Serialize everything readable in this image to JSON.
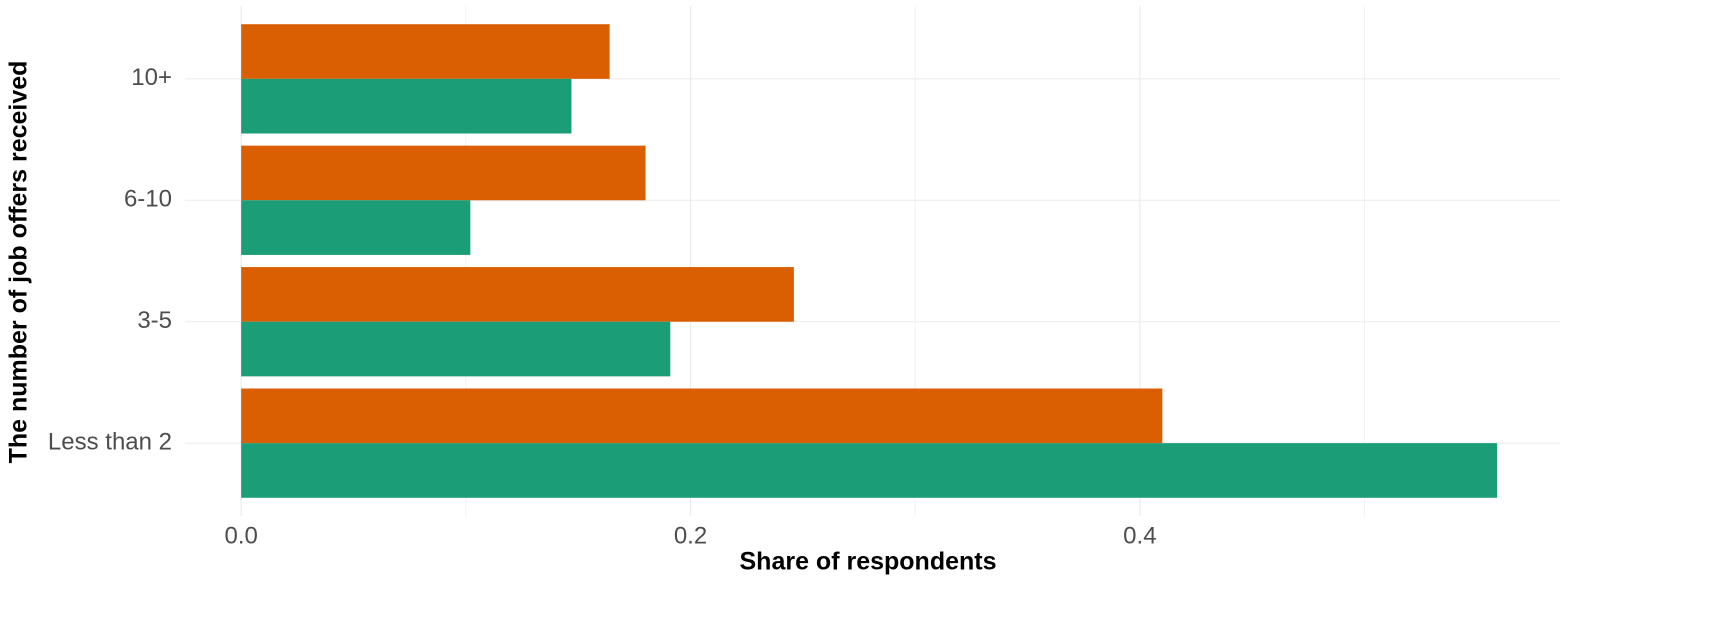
{
  "chart_data": {
    "type": "hbar",
    "x_label": "Share of respondents",
    "y_label": "The number of job offers received",
    "categories": [
      "Less than 2",
      "3-5",
      "6-10",
      "10+"
    ],
    "series": [
      {
        "color": "#d95f02",
        "values": [
          0.41,
          0.246,
          0.18,
          0.164
        ]
      },
      {
        "color": "#1b9e77",
        "values": [
          0.559,
          0.191,
          0.102,
          0.147
        ]
      }
    ],
    "xlim": [
      -0.025,
      0.587
    ],
    "xticks": [
      {
        "value": 0,
        "label": "0.0"
      },
      0.2,
      0.4
    ],
    "xminorticks": [
      0.1,
      0.3,
      0.5
    ],
    "grid": true
  }
}
